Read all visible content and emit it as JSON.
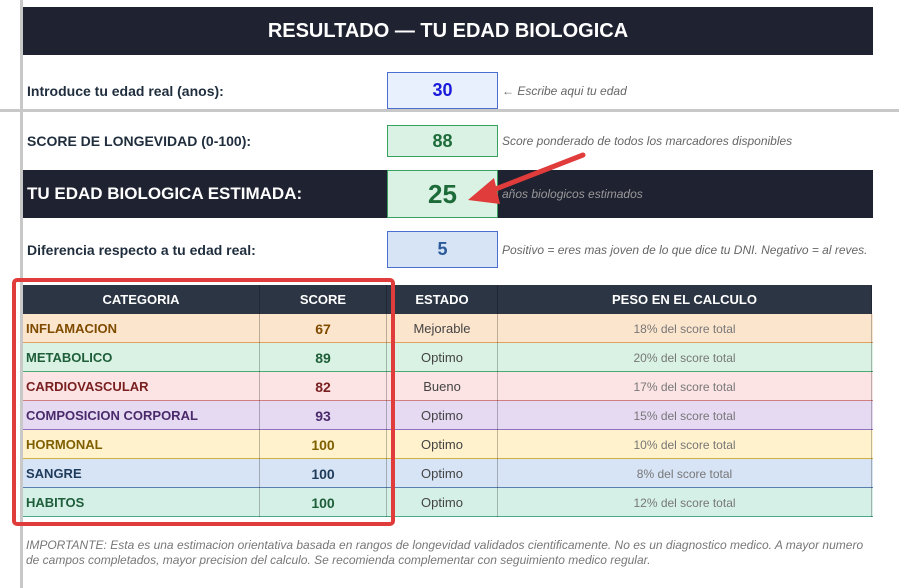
{
  "header": {
    "title": "RESULTADO — TU EDAD BIOLOGICA"
  },
  "fields": [
    {
      "label": "Introduce tu edad real (anos):",
      "value": 30,
      "note": "← Escribe aqui tu edad"
    },
    {
      "label": "SCORE DE LONGEVIDAD (0-100):",
      "value": 88,
      "note": "Score ponderado de todos los marcadores disponibles"
    },
    {
      "label": "TU EDAD BIOLOGICA ESTIMADA:",
      "value": 25,
      "note": "años biologicos estimados"
    },
    {
      "label": "Diferencia respecto a tu edad real:",
      "value": 5,
      "note": "Positivo = eres mas joven de lo que dice tu DNI. Negativo = al reves."
    }
  ],
  "table": {
    "headers": [
      "CATEGORIA",
      "SCORE",
      "ESTADO",
      "PESO EN EL CALCULO"
    ],
    "rows": [
      [
        "INFLAMACION",
        67,
        "Mejorable",
        "18% del score total"
      ],
      [
        "METABOLICO",
        89,
        "Optimo",
        "20% del score total"
      ],
      [
        "CARDIOVASCULAR",
        82,
        "Bueno",
        "17% del score total"
      ],
      [
        "COMPOSICION CORPORAL",
        93,
        "Optimo",
        "15% del score total"
      ],
      [
        "HORMONAL",
        100,
        "Optimo",
        "10% del score total"
      ],
      [
        "SANGRE",
        100,
        "Optimo",
        "8% del score total"
      ],
      [
        "HABITOS",
        100,
        "Optimo",
        "12% del score total"
      ]
    ]
  },
  "footnote": "IMPORTANTE: Esta es una estimacion orientativa basada en rangos de longevidad validados cientificamente. No es un diagnostico medico. A mayor numero de campos completados, mayor precision del calculo. Se recomienda complementar con seguimiento medico regular."
}
